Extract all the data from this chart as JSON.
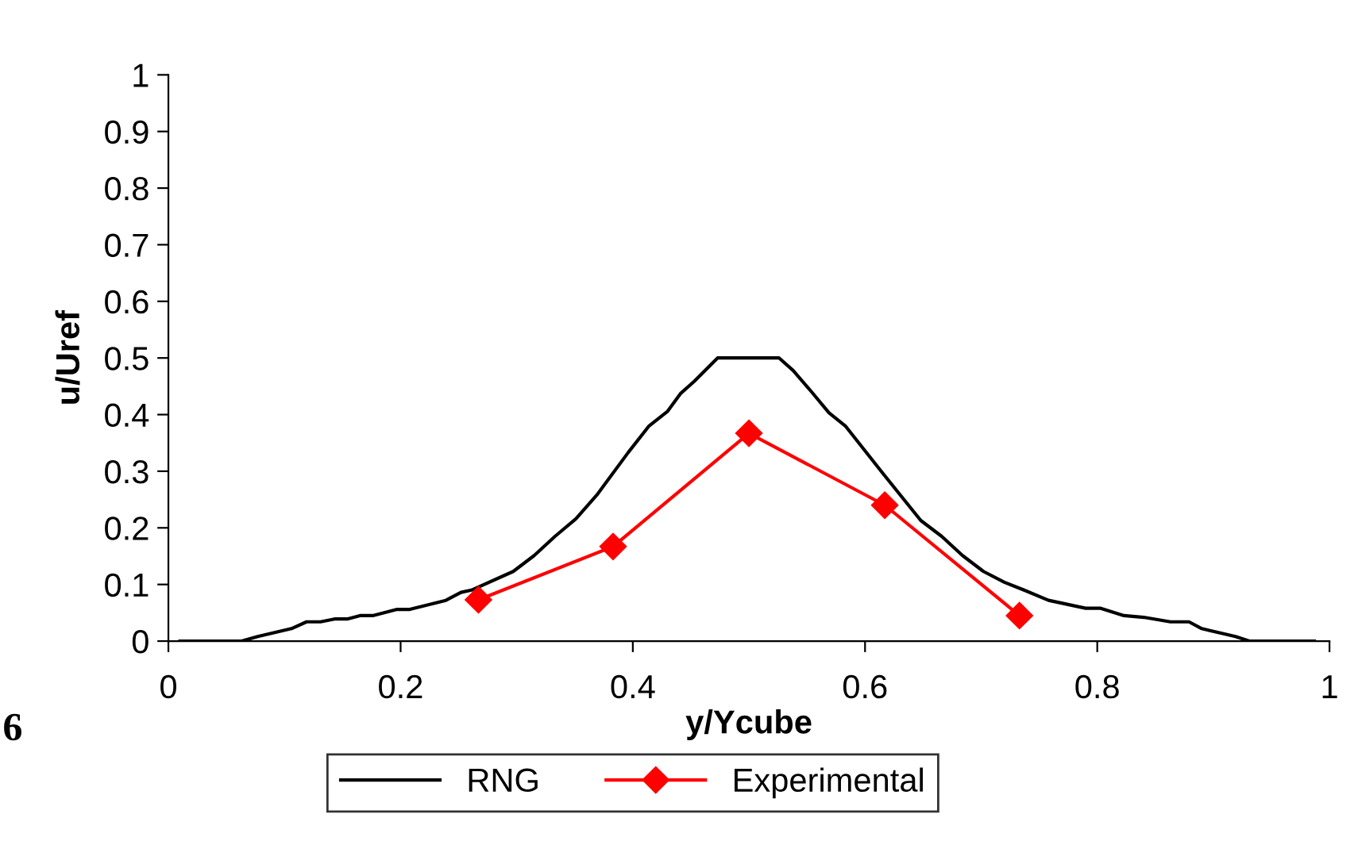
{
  "chart_data": {
    "type": "line",
    "xlabel": "y/Ycube",
    "ylabel": "u/Uref",
    "xlim": [
      0,
      1
    ],
    "xticks": [
      0,
      0.2,
      0.4,
      0.6,
      0.8,
      1
    ],
    "ylim": [
      0,
      1
    ],
    "yticks": [
      0,
      0.1,
      0.2,
      0.3,
      0.4,
      0.5,
      0.6,
      0.7,
      0.8,
      0.9,
      1
    ],
    "grid": false,
    "legend": "bottom",
    "annotations": [
      "6"
    ],
    "series": [
      {
        "name": "RNG",
        "color": "#000000",
        "marker": "none",
        "x": [
          0.01,
          0.035,
          0.063,
          0.077,
          0.106,
          0.119,
          0.131,
          0.143,
          0.154,
          0.165,
          0.176,
          0.197,
          0.208,
          0.239,
          0.252,
          0.261,
          0.297,
          0.315,
          0.333,
          0.351,
          0.369,
          0.396,
          0.414,
          0.43,
          0.441,
          0.453,
          0.473,
          0.526,
          0.538,
          0.554,
          0.569,
          0.583,
          0.615,
          0.648,
          0.666,
          0.684,
          0.702,
          0.72,
          0.737,
          0.758,
          0.774,
          0.79,
          0.803,
          0.823,
          0.84,
          0.863,
          0.879,
          0.89,
          0.919,
          0.931,
          0.965,
          0.978,
          0.987
        ],
        "values": [
          0.0,
          0.0,
          0.0,
          0.008,
          0.022,
          0.034,
          0.034,
          0.039,
          0.039,
          0.045,
          0.045,
          0.056,
          0.056,
          0.072,
          0.086,
          0.09,
          0.123,
          0.151,
          0.185,
          0.216,
          0.258,
          0.333,
          0.38,
          0.406,
          0.437,
          0.459,
          0.5,
          0.5,
          0.478,
          0.44,
          0.403,
          0.38,
          0.297,
          0.213,
          0.185,
          0.151,
          0.123,
          0.104,
          0.09,
          0.072,
          0.065,
          0.058,
          0.058,
          0.045,
          0.042,
          0.034,
          0.034,
          0.022,
          0.008,
          0.0,
          0.0,
          0.0,
          0.0
        ]
      },
      {
        "name": "Experimental",
        "color": "#ff0000",
        "marker": "diamond",
        "x": [
          0.267,
          0.383,
          0.5,
          0.617,
          0.733
        ],
        "values": [
          0.073,
          0.167,
          0.367,
          0.24,
          0.045
        ]
      }
    ]
  }
}
